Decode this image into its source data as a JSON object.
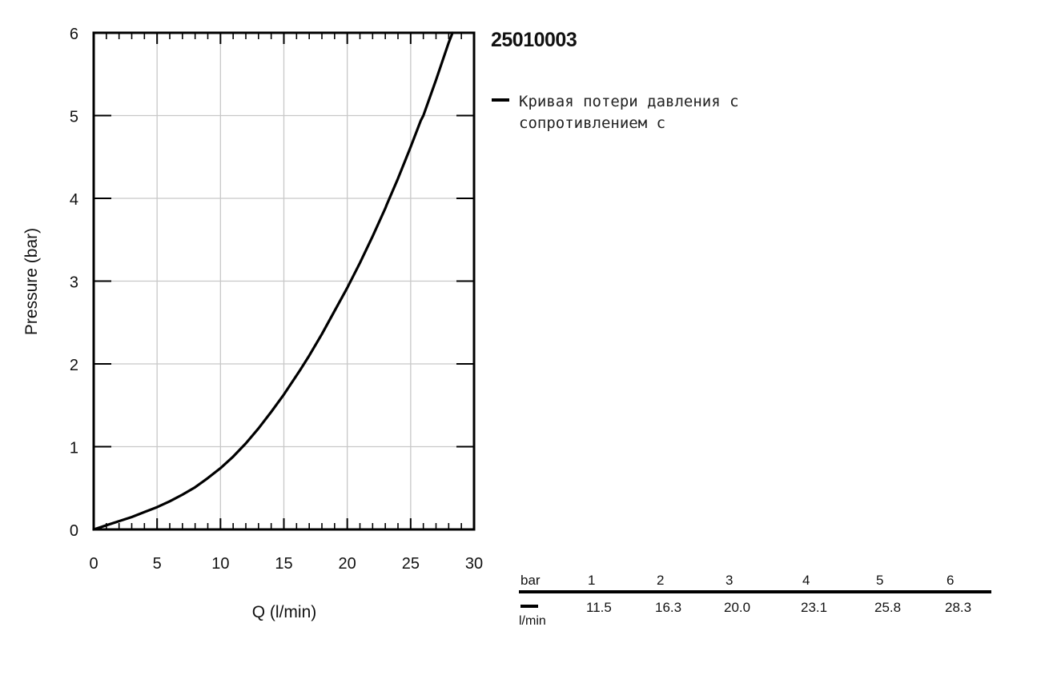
{
  "title": "25010003",
  "chart_data": {
    "type": "line",
    "title": "25010003",
    "xlabel": "Q (l/min)",
    "ylabel": "Pressure (bar)",
    "xlim": [
      0,
      30
    ],
    "ylim": [
      0,
      6
    ],
    "x_ticks": [
      "0",
      "5",
      "10",
      "15",
      "20",
      "25",
      "30"
    ],
    "y_ticks": [
      "0",
      "1",
      "2",
      "3",
      "4",
      "5",
      "6"
    ],
    "grid": true,
    "legend_position": "right",
    "series": [
      {
        "name": "Кривая потери давления с сопротивлением с",
        "color": "#000000",
        "x": [
          0,
          1,
          2,
          3,
          4,
          5,
          6,
          7,
          8,
          9,
          10,
          11,
          11.5,
          12,
          13,
          14,
          15,
          16,
          16.3,
          17,
          18,
          19,
          20,
          21,
          22,
          23,
          23.1,
          24,
          25,
          25.8,
          26,
          27,
          28,
          28.3
        ],
        "y": [
          0,
          0.05,
          0.1,
          0.15,
          0.21,
          0.27,
          0.34,
          0.42,
          0.51,
          0.62,
          0.74,
          0.88,
          0.96,
          1.04,
          1.22,
          1.42,
          1.63,
          1.86,
          1.93,
          2.1,
          2.36,
          2.64,
          2.92,
          3.22,
          3.54,
          3.88,
          3.92,
          4.24,
          4.62,
          4.94,
          5.0,
          5.43,
          5.88,
          6.0
        ]
      }
    ],
    "table": {
      "header_label": "bar",
      "unit_label": "l/min",
      "pressure": [
        "1",
        "2",
        "3",
        "4",
        "5",
        "6"
      ],
      "flow": [
        "11.5",
        "16.3",
        "20.0",
        "23.1",
        "25.8",
        "28.3"
      ]
    }
  }
}
